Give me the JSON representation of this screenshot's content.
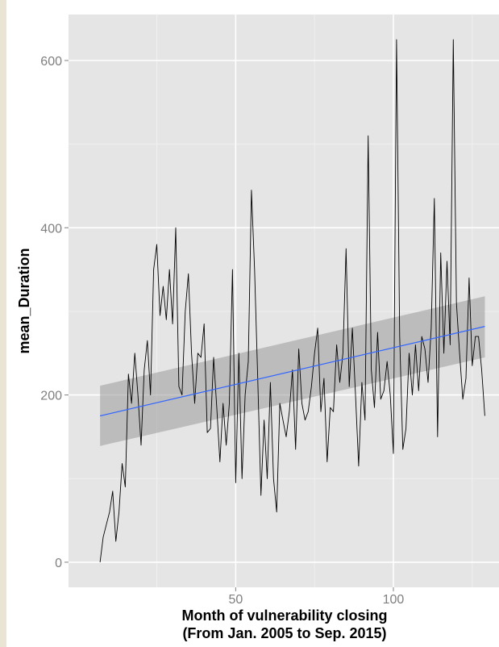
{
  "chart_data": {
    "type": "line",
    "title": "",
    "xlabel_lines": [
      "Month of vulnerability closing",
      "(From Jan. 2005 to Sep. 2015)"
    ],
    "ylabel": "mean_Duration",
    "xlim": [
      -3,
      134
    ],
    "ylim": [
      -30,
      655
    ],
    "x_ticks": [
      50,
      100
    ],
    "y_ticks": [
      0,
      200,
      400,
      600
    ],
    "grid": true,
    "legend": "none",
    "colors": {
      "panel": "#e5e5e5",
      "grid_major": "#ffffff",
      "grid_minor": "#f0f0f0",
      "line": "#000000",
      "trend": "#3366ff",
      "ribbon": "#9a9a9a"
    },
    "trend": {
      "x": [
        7,
        129
      ],
      "y": [
        175,
        282
      ],
      "ci_lower": [
        139,
        245
      ],
      "ci_upper": [
        211,
        318
      ]
    },
    "series": [
      {
        "x": [
          7,
          8,
          9,
          10,
          11,
          12,
          13,
          14,
          15,
          16,
          17,
          18,
          19,
          20,
          21,
          22,
          23,
          24,
          25,
          26,
          27,
          28,
          29,
          30,
          31,
          32,
          33,
          34,
          35,
          36,
          37,
          38,
          39,
          40,
          41,
          42,
          43,
          44,
          45,
          46,
          47,
          48,
          49,
          50,
          51,
          52,
          53,
          54,
          55,
          56,
          57,
          58,
          59,
          60,
          61,
          62,
          63,
          64,
          65,
          66,
          67,
          68,
          69,
          70,
          71,
          72,
          73,
          74,
          75,
          76,
          77,
          78,
          79,
          80,
          81,
          82,
          83,
          84,
          85,
          86,
          87,
          88,
          89,
          90,
          91,
          92,
          93,
          94,
          95,
          96,
          97,
          98,
          99,
          100,
          101,
          102,
          103,
          104,
          105,
          106,
          107,
          108,
          109,
          110,
          111,
          112,
          113,
          114,
          115,
          116,
          117,
          118,
          119,
          120,
          121,
          122,
          123,
          124,
          125,
          126,
          127,
          128,
          129
        ],
        "y": [
          0,
          30,
          45,
          60,
          85,
          25,
          60,
          118,
          90,
          225,
          190,
          250,
          200,
          140,
          230,
          265,
          200,
          350,
          380,
          295,
          330,
          290,
          350,
          285,
          400,
          210,
          200,
          300,
          345,
          250,
          190,
          250,
          245,
          285,
          155,
          160,
          245,
          185,
          120,
          190,
          140,
          190,
          350,
          95,
          250,
          100,
          200,
          240,
          445,
          350,
          220,
          80,
          170,
          100,
          215,
          100,
          60,
          190,
          170,
          150,
          180,
          230,
          135,
          255,
          190,
          170,
          180,
          210,
          250,
          280,
          180,
          220,
          120,
          185,
          180,
          260,
          215,
          250,
          375,
          210,
          280,
          200,
          115,
          215,
          170,
          510,
          230,
          185,
          275,
          195,
          205,
          240,
          200,
          130,
          625,
          270,
          135,
          160,
          250,
          200,
          260,
          205,
          270,
          255,
          215,
          280,
          435,
          150,
          370,
          250,
          360,
          260,
          625,
          310,
          250,
          195,
          220,
          340,
          235,
          270,
          270,
          230,
          175
        ]
      }
    ]
  }
}
